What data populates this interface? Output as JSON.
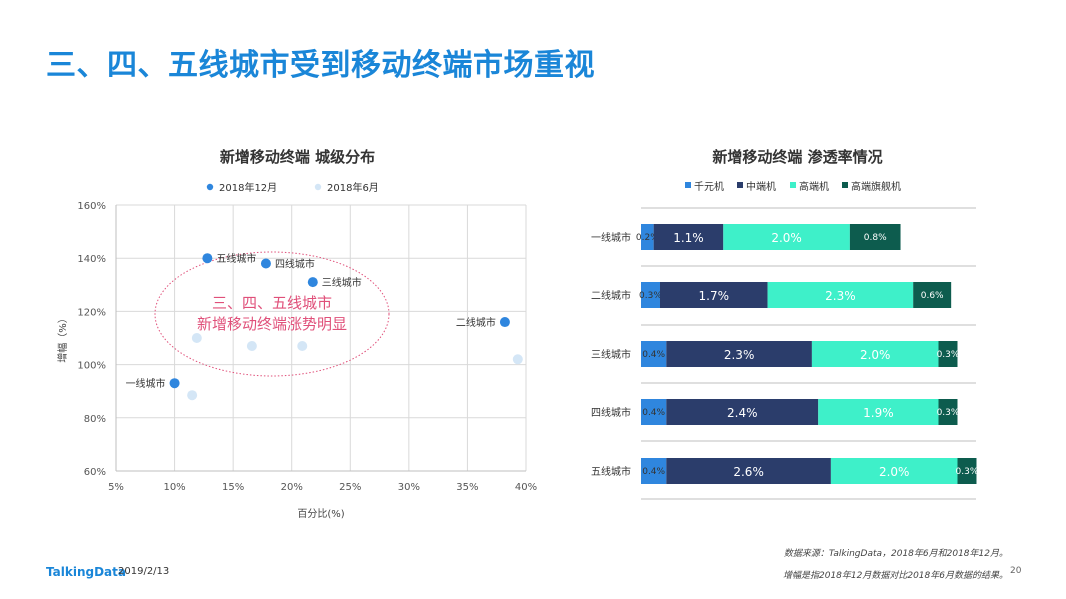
{
  "page": {
    "title": "三、四、五线城市受到移动终端市场重视",
    "footer_logo": "TalkingData",
    "footer_date": "2019/2/13",
    "source_text": "数据来源：TalkingData，2018年6月和2018年12月。",
    "note_text": "增幅是指2018年12月数据对比2018年6月数据的结果。",
    "page_number": "20"
  },
  "chart_data": [
    {
      "type": "scatter",
      "title": "新增移动终端  城级分布",
      "xlabel": "百分比(%)",
      "ylabel": "增幅（%）",
      "xlim": [
        5,
        40
      ],
      "ylim": [
        60,
        160
      ],
      "x_ticks": [
        "5%",
        "10%",
        "15%",
        "20%",
        "25%",
        "30%",
        "35%",
        "40%"
      ],
      "y_ticks": [
        "60%",
        "80%",
        "100%",
        "120%",
        "140%",
        "160%"
      ],
      "grid": true,
      "legend_position": "top",
      "series": [
        {
          "name": "2018年12月",
          "color": "#2f86de",
          "points": [
            {
              "x": 10,
              "y": 93,
              "label": "一线城市"
            },
            {
              "x": 38.2,
              "y": 116,
              "label": "二线城市"
            },
            {
              "x": 21.8,
              "y": 131,
              "label": "三线城市"
            },
            {
              "x": 17.8,
              "y": 138,
              "label": "四线城市"
            },
            {
              "x": 12.8,
              "y": 140,
              "label": "五线城市"
            }
          ]
        },
        {
          "name": "2018年6月",
          "color": "#d4e6f6",
          "points": [
            {
              "x": 11.5,
              "y": 88.5
            },
            {
              "x": 39.3,
              "y": 102
            },
            {
              "x": 20.9,
              "y": 107
            },
            {
              "x": 16.6,
              "y": 107
            },
            {
              "x": 11.9,
              "y": 110
            }
          ]
        }
      ],
      "annotation": {
        "line1": "三、四、五线城市",
        "line2": "新增移动终端涨势明显",
        "color": "#e0507a"
      }
    },
    {
      "type": "bar",
      "orientation": "horizontal",
      "stacked": true,
      "title": "新增移动终端  渗透率情况",
      "categories": [
        "一线城市",
        "二线城市",
        "三线城市",
        "四线城市",
        "五线城市"
      ],
      "legend_position": "top",
      "series": [
        {
          "name": "千元机",
          "color": "#2f86de",
          "values": [
            0.2,
            0.3,
            0.4,
            0.4,
            0.4
          ],
          "labels": [
            "0.2%",
            "0.3%",
            "0.4%",
            "0.4%",
            "0.4%"
          ]
        },
        {
          "name": "中端机",
          "color": "#2b3d6b",
          "values": [
            1.1,
            1.7,
            2.3,
            2.4,
            2.6
          ],
          "labels": [
            "1.1%",
            "1.7%",
            "2.3%",
            "2.4%",
            "2.6%"
          ]
        },
        {
          "name": "高端机",
          "color": "#3ef0c9",
          "values": [
            2.0,
            2.3,
            2.0,
            1.9,
            2.0
          ],
          "labels": [
            "2.0%",
            "2.3%",
            "2.0%",
            "1.9%",
            "2.0%"
          ]
        },
        {
          "name": "高端旗舰机",
          "color": "#0d5c4e",
          "values": [
            0.8,
            0.6,
            0.3,
            0.3,
            0.3
          ],
          "labels": [
            "0.8%",
            "0.6%",
            "0.3%",
            "0.3%",
            "0.3%"
          ]
        }
      ]
    }
  ]
}
